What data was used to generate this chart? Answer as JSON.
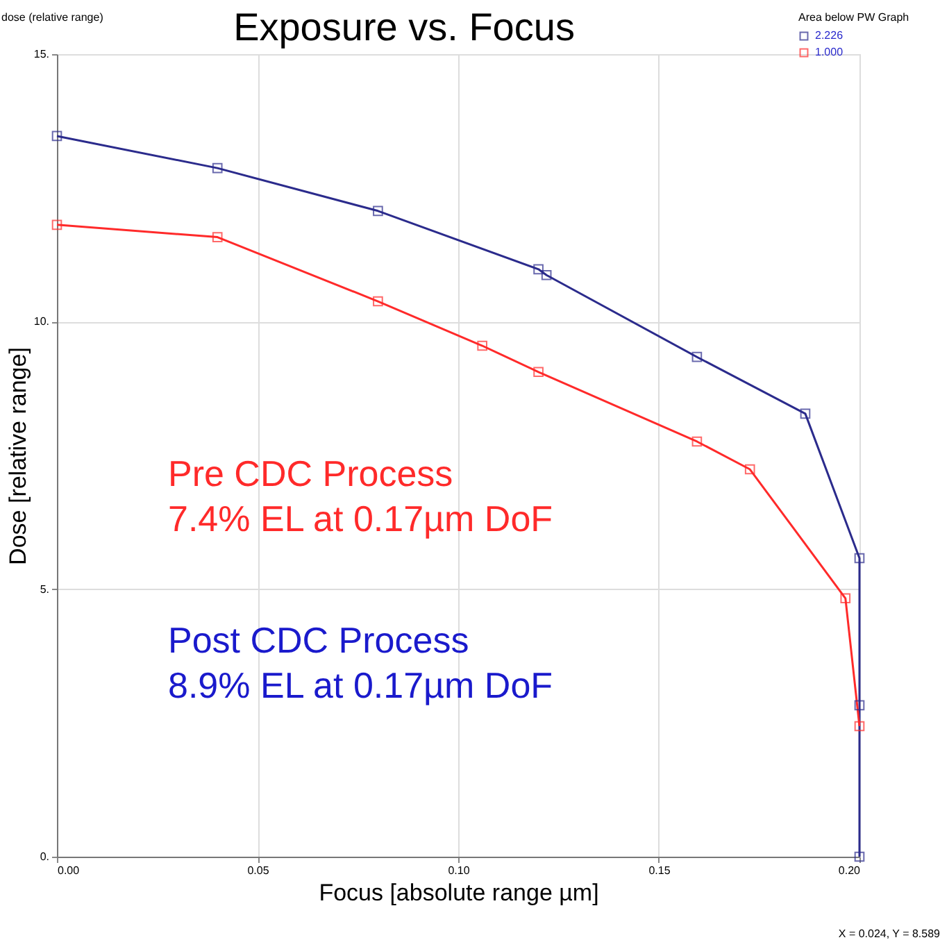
{
  "chart_data": {
    "type": "line",
    "title": "Exposure vs. Focus",
    "xlabel": "Focus [absolute range µm]",
    "ylabel": "Dose [relative range]",
    "legend_title": "Area below PW Graph",
    "series": [
      {
        "name": "2.226",
        "color": "#2b2b8c",
        "x": [
          0.0,
          0.04,
          0.08,
          0.12,
          0.122,
          0.1595,
          0.1865,
          0.2,
          0.2,
          0.2
        ],
        "values": [
          13.47,
          12.87,
          12.07,
          10.98,
          10.87,
          9.34,
          8.28,
          5.58,
          2.83,
          0
        ]
      },
      {
        "name": "1.000",
        "color": "#ff2a2a",
        "x": [
          0.0,
          0.04,
          0.08,
          0.106,
          0.12,
          0.1595,
          0.1727,
          0.1965,
          0.2
        ],
        "values": [
          11.81,
          11.58,
          10.38,
          9.55,
          9.06,
          7.76,
          7.24,
          4.83,
          2.44
        ]
      }
    ],
    "xlim": [
      0,
      0.2
    ],
    "ylim": [
      0,
      15
    ],
    "xticks": [
      {
        "value": 0,
        "label": "0.00"
      },
      0.05,
      {
        "value": 0.1,
        "label": "0.10"
      },
      0.15,
      {
        "value": 0.2,
        "label": "0.20"
      }
    ],
    "yticks": [
      {
        "value": 0,
        "label": "0."
      },
      {
        "value": 5,
        "label": "5."
      },
      {
        "value": 10,
        "label": "10."
      },
      {
        "value": 15,
        "label": "15."
      }
    ],
    "annotations": [
      "dose (relative range)",
      "Pre CDC Process\n7.4% EL at 0.17µm DoF",
      "Post CDC Process\n8.9% EL at 0.17µm DoF",
      "X = 0.024, Y = 8.589"
    ],
    "grid": true,
    "legend": "top right",
    "marker": "square",
    "line_style": "solid"
  }
}
